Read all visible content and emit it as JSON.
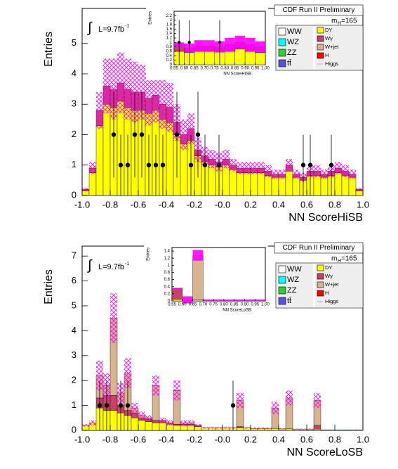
{
  "chart_data": [
    {
      "type": "histogram",
      "title": "CDF Run II Preliminary",
      "x_label": "NN ScoreHiSB",
      "y_label": "Entries",
      "lumi": {
        "integral": "∫",
        "text": "L=9.7fb",
        "superscript": "-1"
      },
      "mass": {
        "text": "m",
        "subscript": "H",
        "suffix": "=165"
      },
      "xlim": [
        -1,
        1
      ],
      "ylim": [
        0,
        6.15
      ],
      "xticks": [
        {
          "value": -1,
          "label": "-1.0"
        },
        -0.8,
        -0.6,
        -0.4,
        -0.2,
        {
          "value": 0,
          "label": "-0.0"
        },
        0.2,
        0.4,
        0.6,
        0.8,
        {
          "value": 1,
          "label": "1.0"
        }
      ],
      "yticks": [
        0,
        1,
        2,
        3,
        4,
        5
      ],
      "bins": [
        -1,
        -0.95,
        -0.9,
        -0.85,
        -0.8,
        -0.75,
        -0.7,
        -0.65,
        -0.6,
        -0.55,
        -0.5,
        -0.45,
        -0.4,
        -0.35,
        -0.3,
        -0.25,
        -0.2,
        -0.15,
        -0.1,
        -0.05,
        0,
        0.05,
        0.1,
        0.15,
        0.2,
        0.25,
        0.3,
        0.35,
        0.4,
        0.45,
        0.5,
        0.55,
        0.6,
        0.65,
        0.7,
        0.75,
        0.8,
        0.85,
        0.9,
        0.95,
        1
      ],
      "series": [
        {
          "name": "DY",
          "color": "#ffff00",
          "values": [
            0.15,
            0.75,
            2.3,
            3.0,
            2.9,
            3.1,
            2.9,
            2.8,
            2.8,
            2.7,
            2.8,
            2.5,
            2.4,
            2.0,
            1.7,
            1.8,
            1.3,
            1.1,
            1.0,
            0.95,
            1.0,
            0.85,
            0.75,
            0.75,
            0.75,
            0.75,
            0.65,
            0.6,
            0.6,
            0.8,
            0.6,
            0.5,
            0.65,
            0.65,
            0.6,
            0.65,
            0.75,
            0.65,
            0.6,
            0.15
          ]
        },
        {
          "name": "Wγ",
          "color": "#c8406e",
          "values": [
            0.05,
            0.15,
            0.5,
            0.6,
            0.6,
            0.6,
            0.6,
            0.6,
            0.6,
            0.5,
            0.5,
            0.5,
            0.5,
            0.4,
            0.3,
            0.4,
            0.2,
            0.2,
            0.2,
            0.15,
            0.2,
            0.15,
            0.15,
            0.15,
            0.15,
            0.15,
            0.15,
            0.1,
            0.1,
            0.2,
            0.1,
            0.1,
            0.15,
            0.15,
            0.1,
            0.15,
            0.15,
            0.15,
            0.1,
            0.05
          ]
        },
        {
          "name": "W+jet",
          "color": "#d8b48e",
          "values": [
            0,
            0,
            0,
            0,
            0,
            0,
            0,
            0,
            0,
            0,
            0,
            0,
            0,
            0,
            0,
            0,
            0,
            0,
            0,
            0,
            0,
            0,
            0,
            0,
            0,
            0,
            0,
            0,
            0,
            0,
            0,
            0,
            0,
            0,
            0,
            0,
            0,
            0,
            0,
            0
          ]
        }
      ],
      "uncertainty": {
        "color": "#ff00ff",
        "style": "hatch",
        "values": [
          0.05,
          0.2,
          0.6,
          0.9,
          1.0,
          1.0,
          1.0,
          1.0,
          0.9,
          0.9,
          0.9,
          0.8,
          0.8,
          0.6,
          0.5,
          0.5,
          0.4,
          0.3,
          0.3,
          0.3,
          0.3,
          0.2,
          0.2,
          0.2,
          0.2,
          0.2,
          0.2,
          0.15,
          0.15,
          0.2,
          0.15,
          0.15,
          0.2,
          0.2,
          0.15,
          0.2,
          0.2,
          0.2,
          0.15,
          0.05
        ]
      },
      "data": {
        "x": [
          -0.775,
          -0.725,
          -0.675,
          -0.625,
          -0.575,
          -0.525,
          -0.475,
          -0.425,
          -0.325,
          -0.225,
          -0.175,
          -0.125,
          -0.025,
          0.575,
          0.625,
          0.775
        ],
        "values": [
          2,
          1,
          1,
          2,
          2,
          1,
          1,
          1,
          2,
          1,
          2,
          1,
          1,
          1,
          1,
          1
        ],
        "errors": [
          1.41,
          1,
          1,
          1.41,
          1.41,
          1,
          1,
          1,
          1.41,
          1,
          1.41,
          1,
          1,
          1,
          1,
          1
        ]
      },
      "legend_extra": [
        {
          "name": "WW",
          "color": "#ffffff"
        },
        {
          "name": "WZ",
          "color": "#00ffff"
        },
        {
          "name": "ZZ",
          "color": "#33cc33"
        },
        {
          "name": "tt̄",
          "color": "#5a50e0"
        },
        {
          "name": "H",
          "color": "#ff0000"
        },
        {
          "name": "Higgs",
          "color": "#ff66cc",
          "marker": "line"
        }
      ],
      "inset": {
        "type": "histogram",
        "x_label": "NN ScoreHiSB",
        "y_label": "Entries",
        "xlim": [
          0.55,
          1
        ],
        "ylim": [
          0,
          2.4
        ],
        "xticks": [
          0.55,
          {
            "value": 0.6,
            "label": "0.60"
          },
          0.65,
          {
            "value": 0.7,
            "label": "0.70"
          },
          0.75,
          {
            "value": 0.8,
            "label": "0.80"
          },
          0.85,
          {
            "value": 0.9,
            "label": "0.90"
          },
          0.95,
          {
            "value": 1,
            "label": "1.00"
          }
        ],
        "yticks": [
          0,
          0.2,
          0.4,
          0.6,
          0.8,
          1,
          1.2,
          1.4,
          1.6,
          1.8,
          2,
          2.2
        ],
        "bins": [
          0.55,
          0.6,
          0.65,
          0.7,
          0.75,
          0.8,
          0.85,
          0.9,
          0.95,
          1
        ],
        "series": [
          {
            "values": [
              0.6,
              0.55,
              0.6,
              0.6,
              0.6,
              0.6,
              0.7,
              0.6,
              0.55
            ]
          },
          {
            "values": [
              0.3,
              0.2,
              0.25,
              0.25,
              0.2,
              0.3,
              0.3,
              0.3,
              0.25
            ]
          },
          {
            "values": [
              0,
              0,
              0,
              0,
              0,
              0,
              0,
              0,
              0
            ]
          }
        ],
        "uncertainty": {
          "color": "#ff00ff",
          "style": "solid",
          "values": [
            0.1,
            0.2,
            0.25,
            0.25,
            0.25,
            0.3,
            0.3,
            0.3,
            0.25
          ]
        },
        "data": {
          "x": [
            0.575,
            0.625,
            0.775
          ],
          "values": [
            1,
            1,
            1
          ],
          "errors": [
            1,
            1,
            1
          ]
        }
      }
    },
    {
      "type": "histogram",
      "title": "CDF Run II Preliminary",
      "x_label": "NN ScoreLoSB",
      "y_label": "Entries",
      "lumi": {
        "integral": "∫",
        "text": "L=9.7fb",
        "superscript": "-1"
      },
      "mass": {
        "text": "m",
        "subscript": "H",
        "suffix": "=165"
      },
      "xlim": [
        -1,
        1
      ],
      "ylim": [
        0,
        7.4
      ],
      "xticks": [
        {
          "value": -1,
          "label": "-1.0"
        },
        -0.8,
        -0.6,
        -0.4,
        -0.2,
        {
          "value": 0,
          "label": "-0.0"
        },
        0.2,
        0.4,
        0.6,
        0.8,
        {
          "value": 1,
          "label": "1.0"
        }
      ],
      "yticks": [
        0,
        1,
        2,
        3,
        4,
        5,
        6,
        7
      ],
      "bins": [
        -1,
        -0.95,
        -0.9,
        -0.85,
        -0.8,
        -0.75,
        -0.7,
        -0.65,
        -0.6,
        -0.55,
        -0.5,
        -0.45,
        -0.4,
        -0.35,
        -0.3,
        -0.25,
        -0.2,
        -0.15,
        -0.1,
        -0.05,
        0,
        0.05,
        0.1,
        0.15,
        0.2,
        0.25,
        0.3,
        0.35,
        0.4,
        0.45,
        0.5,
        0.55,
        0.6,
        0.65,
        0.7,
        0.75,
        0.8,
        0.85,
        0.9,
        0.95,
        1
      ],
      "series": [
        {
          "name": "DY",
          "color": "#ffff00",
          "values": [
            0.2,
            0.3,
            0.9,
            0.8,
            0.8,
            0.7,
            0.6,
            0.5,
            0.4,
            0.35,
            0.3,
            0.3,
            0.25,
            0.2,
            0.2,
            0.2,
            0.15,
            0.1,
            0.1,
            0.1,
            0.1,
            0.1,
            0.1,
            0.1,
            0.08,
            0.08,
            0.08,
            0.08,
            0.06,
            0.06,
            0.05,
            0.05,
            0.05,
            0.05,
            0.02,
            0.02,
            0.02,
            0.02,
            0.02,
            0.02
          ]
        },
        {
          "name": "Wγ",
          "color": "#c8406e",
          "values": [
            0,
            0,
            0.4,
            0.6,
            0.6,
            0.3,
            0.2,
            0.2,
            0.1,
            0.1,
            0.1,
            0.1,
            0.05,
            0.05,
            0.05,
            0.05,
            0.05,
            0,
            0,
            0,
            0,
            0,
            0.05,
            0,
            0,
            0,
            0,
            0,
            0,
            0,
            0,
            0,
            0,
            0.15,
            0,
            0,
            0,
            0,
            0,
            0
          ]
        },
        {
          "name": "W+jet",
          "color": "#d8b48e",
          "values": [
            0,
            0,
            0.9,
            0.4,
            3.1,
            0.5,
            1.5,
            0.2,
            0.1,
            0.05,
            1.4,
            0,
            0,
            1.35,
            0.05,
            0.05,
            0,
            0,
            0,
            0,
            0,
            0,
            1.05,
            0,
            0,
            0,
            0,
            0.82,
            0,
            1.24,
            0,
            0,
            0,
            1.0,
            0,
            0,
            0,
            0,
            0,
            0
          ]
        }
      ],
      "uncertainty": {
        "color": "#ff00ff",
        "style": "hatch",
        "values": [
          0.05,
          0.1,
          0.6,
          0.5,
          1.0,
          0.4,
          0.6,
          0.2,
          0.15,
          0.1,
          0.4,
          0.1,
          0.1,
          0.4,
          0.1,
          0.1,
          0.05,
          0.03,
          0.03,
          0.03,
          0.03,
          0.03,
          0.3,
          0.03,
          0.03,
          0.03,
          0.03,
          0.25,
          0.03,
          0.3,
          0.02,
          0.02,
          0.02,
          0.3,
          0.01,
          0.01,
          0.01,
          0.01,
          0.01,
          0.01
        ]
      },
      "data": {
        "x": [
          -0.875,
          -0.825,
          -0.725,
          -0.675,
          0.075
        ],
        "values": [
          1,
          1,
          1,
          1,
          1
        ],
        "errors": [
          1,
          1,
          1,
          1,
          1
        ]
      },
      "legend_extra": [
        {
          "name": "WW",
          "color": "#ffffff"
        },
        {
          "name": "WZ",
          "color": "#00ffff"
        },
        {
          "name": "ZZ",
          "color": "#33cc33"
        },
        {
          "name": "tt̄",
          "color": "#5a50e0"
        },
        {
          "name": "H",
          "color": "#ff0000"
        },
        {
          "name": "Higgs",
          "color": "#ff66cc",
          "marker": "line"
        }
      ],
      "inset": {
        "type": "histogram",
        "x_label": "NN ScoreLoSB",
        "y_label": "Entries",
        "xlim": [
          0.55,
          1
        ],
        "ylim": [
          0,
          1.5
        ],
        "xticks": [
          0.55,
          {
            "value": 0.6,
            "label": "0.60"
          },
          0.65,
          {
            "value": 0.7,
            "label": "0.70"
          },
          0.75,
          {
            "value": 0.8,
            "label": "0.80"
          },
          0.85,
          {
            "value": 0.9,
            "label": "0.90"
          },
          0.95,
          {
            "value": 1,
            "label": "1.00"
          }
        ],
        "yticks": [
          0,
          0.2,
          0.4,
          0.6,
          0.8,
          1,
          1.2,
          1.4
        ],
        "bins": [
          0.55,
          0.6,
          0.65,
          0.7,
          0.75,
          0.8,
          0.85,
          0.9,
          0.95,
          1
        ],
        "series": [
          {
            "values": [
              0.05,
              0.03,
              0.03,
              0.02,
              0.02,
              0.02,
              0.02,
              0.02,
              0.02
            ]
          },
          {
            "values": [
              0.3,
              0,
              0,
              0,
              0,
              0,
              0,
              0,
              0
            ]
          },
          {
            "values": [
              0,
              0,
              1.25,
              0,
              0,
              0,
              0,
              0,
              0
            ]
          }
        ],
        "uncertainty": {
          "color": "#ff00ff",
          "style": "solid",
          "values": [
            0.02,
            0.1,
            0.15,
            0.02,
            0.02,
            0.02,
            0.02,
            0.02,
            0.02
          ]
        },
        "data": {
          "x": [],
          "values": [],
          "errors": []
        }
      }
    }
  ]
}
